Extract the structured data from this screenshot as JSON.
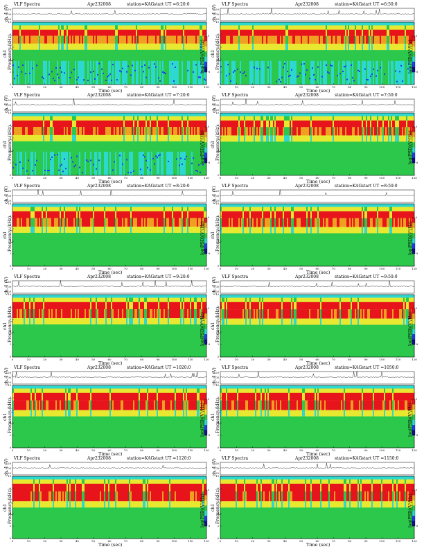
{
  "page": {
    "header_title": "VLF Spectra",
    "header_date": "Apr232008",
    "header_station": "station=KAG",
    "y1_label": "ch. 1 (V)",
    "y2_label": "Frequency (kHz)",
    "channel_label": "ch1",
    "x_label": "Time (sec)",
    "colorbar_label": "log(PSD)(V²/Hz)"
  },
  "panels": [
    {
      "start": "start UT =6:20:0"
    },
    {
      "start": "start UT =6:50:0"
    },
    {
      "start": "start UT =7:20:0"
    },
    {
      "start": "start UT =7:50:0"
    },
    {
      "start": "start UT =8:20:0"
    },
    {
      "start": "start UT =8:50:0"
    },
    {
      "start": "start UT =9:20:0"
    },
    {
      "start": "start UT =9:50:0"
    },
    {
      "start": "start UT =1020:0"
    },
    {
      "start": "start UT =1050:0"
    },
    {
      "start": "start UT =1120:0"
    },
    {
      "start": "start UT =1150:0"
    }
  ],
  "chart_data": {
    "type": "heatmap",
    "xlim": [
      0,
      120
    ],
    "x_ticks": [
      0,
      10,
      20,
      30,
      40,
      50,
      60,
      70,
      80,
      90,
      100,
      110,
      120
    ],
    "ylim": [
      0,
      10
    ],
    "y_ticks": [
      0,
      2,
      4,
      6,
      8,
      10
    ],
    "waveform_ticks": [
      "0.20",
      "0.00",
      "-0.20"
    ],
    "colorbar_ticks": [
      "0",
      "-8"
    ],
    "colors": {
      "red": "#e8141c",
      "orange": "#f0a020",
      "yellow": "#e8e830",
      "green": "#2cc84c",
      "cyan": "#2cd8d0",
      "blue": "#1c3cf0",
      "navy": "#10108c"
    },
    "panels_intensity": [
      0.35,
      0.38,
      0.45,
      0.5,
      0.55,
      0.6,
      0.65,
      0.7,
      0.8,
      0.8,
      0.85,
      0.85
    ]
  }
}
